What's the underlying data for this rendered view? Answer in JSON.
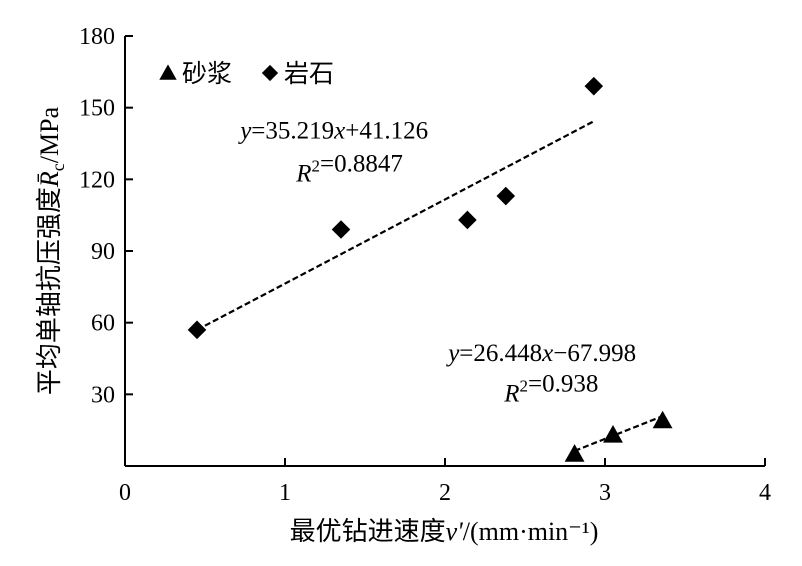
{
  "chart_data": {
    "type": "scatter",
    "xlabel": "最优钻进速度v'/(mm·min⁻¹)",
    "ylabel": "平均单轴抗压强度R̄c/MPa",
    "xlim": [
      0,
      4
    ],
    "ylim": [
      0,
      180
    ],
    "x_ticks": [
      "0",
      "1",
      "2",
      "3",
      "4"
    ],
    "y_ticks": [
      "30",
      "60",
      "90",
      "120",
      "150",
      "180"
    ],
    "legend_position": "top-left",
    "series": [
      {
        "name": "砂浆",
        "marker": "triangle",
        "color": "#000000",
        "points": [
          {
            "x": 2.81,
            "y": 5
          },
          {
            "x": 3.05,
            "y": 13
          },
          {
            "x": 3.36,
            "y": 19
          }
        ],
        "fit": {
          "slope": 26.448,
          "intercept": -67.998,
          "x_range": [
            2.81,
            3.36
          ],
          "equation": "y=26.448x−67.998",
          "r2": "R2=0.938"
        }
      },
      {
        "name": "岩石",
        "marker": "diamond",
        "color": "#000000",
        "points": [
          {
            "x": 0.45,
            "y": 57
          },
          {
            "x": 1.35,
            "y": 99
          },
          {
            "x": 2.14,
            "y": 103
          },
          {
            "x": 2.38,
            "y": 113
          },
          {
            "x": 2.93,
            "y": 159
          }
        ],
        "fit": {
          "slope": 35.219,
          "intercept": 41.126,
          "x_range": [
            0.45,
            2.93
          ],
          "equation": "y=35.219x+41.126",
          "r2": "R2=0.8847"
        }
      }
    ],
    "annotations": [
      {
        "text": "y=35.219x+41.126",
        "x": 0.72,
        "y": 137
      },
      {
        "text": "R2=0.8847",
        "x": 1.07,
        "y": 119
      },
      {
        "text": "y=26.448x−67.998",
        "x": 2.02,
        "y": 44
      },
      {
        "text": "R2=0.938",
        "x": 2.37,
        "y": 27
      }
    ]
  }
}
